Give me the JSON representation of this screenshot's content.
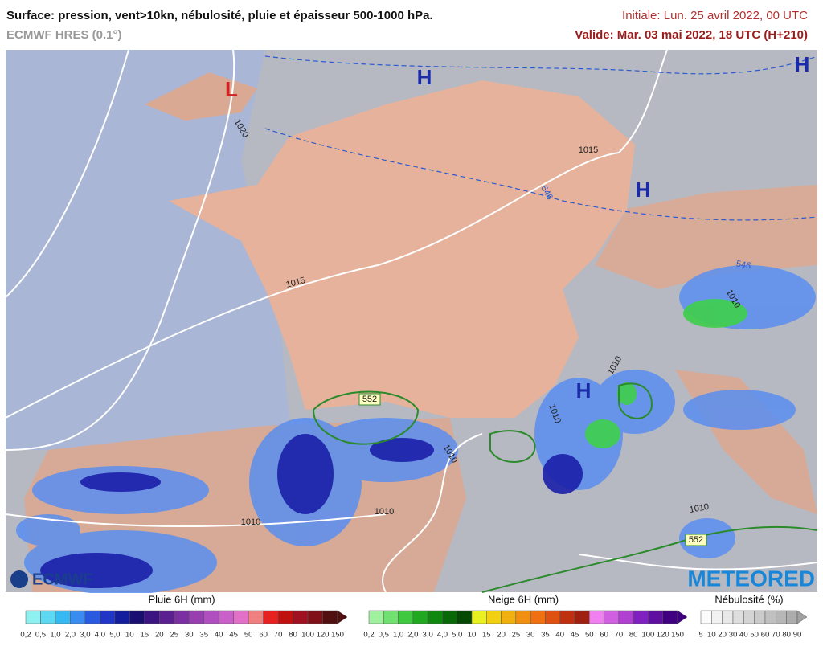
{
  "header": {
    "title": "Surface: pression, vent>10kn, nébulosité, pluie et épaisseur 500-1000 hPa.",
    "model": "ECMWF HRES (0.1°)",
    "initial": "Initiale: Lun. 25 avril 2022, 00 UTC",
    "valid": "Valide: Mar. 03 mai 2022, 18 UTC (H+210)"
  },
  "map": {
    "pressure_centers": [
      "L",
      "H",
      "H",
      "H",
      "H"
    ],
    "isobar_labels": [
      "1020",
      "1015",
      "1015",
      "1010",
      "1010",
      "1010",
      "1010",
      "1010",
      "1010",
      "1010"
    ],
    "thickness_labels": [
      "546",
      "546"
    ],
    "thickness_boxes": [
      "552",
      "552"
    ]
  },
  "logos": {
    "left": "ECMWF",
    "right": "METEORED"
  },
  "legend": {
    "rain": {
      "title": "Pluie 6H (mm)",
      "ticks": [
        "0,2",
        "0,5",
        "1,0",
        "2,0",
        "3,0",
        "4,0",
        "5,0",
        "10",
        "15",
        "20",
        "25",
        "30",
        "35",
        "40",
        "45",
        "50",
        "60",
        "70",
        "80",
        "100",
        "120",
        "150"
      ]
    },
    "snow": {
      "title": "Neige 6H (mm)",
      "ticks": [
        "0,2",
        "0,5",
        "1,0",
        "2,0",
        "3,0",
        "4,0",
        "5,0",
        "10",
        "15",
        "20",
        "25",
        "30",
        "35",
        "40",
        "45",
        "50",
        "60",
        "70",
        "80",
        "100",
        "120",
        "150"
      ]
    },
    "cloud": {
      "title": "Nébulosité (%)",
      "ticks": [
        "5",
        "10",
        "20",
        "30",
        "40",
        "50",
        "60",
        "70",
        "80",
        "90"
      ]
    }
  }
}
